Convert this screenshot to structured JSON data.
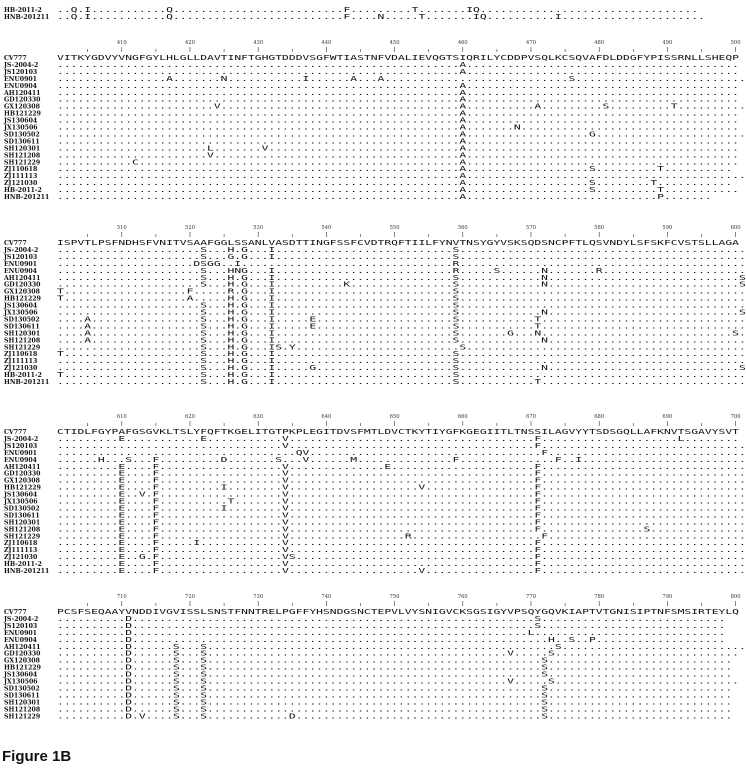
{
  "caption": "Figure 1B",
  "top_rows": [
    {
      "name": "HB-2011-2",
      "seq": "..Q.I...........Q.........................F.........T.......IQ................................"
    },
    {
      "name": "HNB-201211",
      "seq": "..Q.I...........Q.........................F....N.....T.......IQ..........I....................."
    }
  ],
  "blocks": [
    {
      "start": 400,
      "ticks": [
        410,
        420,
        430,
        440,
        450,
        460,
        470,
        480,
        490,
        500
      ],
      "rows": [
        {
          "name": "CV777",
          "seq": "VITKYGDVYVNGFGYLHLGLLDAVTINFTGHGTDDDVSGFWTIASTNFVDALIEVQGTSIQRILYCDDPVSQLKCSQVAFDLDDGFYPISSRNLLSHEQP"
        },
        {
          "name": "JS-2004-2",
          "seq": "...........................................................A........................................"
        },
        {
          "name": "JS120103",
          "seq": "...........................................................A........................................"
        },
        {
          "name": "ENU0901",
          "seq": "................A.......N...........I......A...A...........................S........................."
        },
        {
          "name": "ENU0904",
          "seq": "...........................................................A........................................"
        },
        {
          "name": "AH120411",
          "seq": "...........................................................A........................................"
        },
        {
          "name": "GD120330",
          "seq": "...........................................................A........................................"
        },
        {
          "name": "GX120308",
          "seq": ".......................V...................................A..........A.........S.........T..........."
        },
        {
          "name": "HB121229",
          "seq": "...........................................................A........................................"
        },
        {
          "name": "JS130604",
          "seq": "...........................................................A........................................"
        },
        {
          "name": "JX130506",
          "seq": "...........................................................A.......N................................"
        },
        {
          "name": "SD130502",
          "seq": "...........................................................A..................G.........................."
        },
        {
          "name": "SD130611",
          "seq": "...........................................................A........................................"
        },
        {
          "name": "SH120301",
          "seq": "......................L.......V............................A........................................"
        },
        {
          "name": "SH121208",
          "seq": "......................V....................................A........................................"
        },
        {
          "name": "SH121229",
          "seq": "...........C...............................................A........................................"
        },
        {
          "name": "ZJ110618",
          "seq": "...........................................................A..................S.........T.........."
        },
        {
          "name": "ZJ111113",
          "seq": "...........................................................A..........................................."
        },
        {
          "name": "ZJ121030",
          "seq": "...........................................................A..................S........T..........."
        },
        {
          "name": "HB-2011-2",
          "seq": "...........................................................A..................S.........T..........."
        },
        {
          "name": "HNB-201211",
          "seq": "...........................................................A............................P......."
        }
      ]
    },
    {
      "start": 500,
      "ticks": [
        510,
        520,
        530,
        540,
        550,
        560,
        570,
        580,
        590,
        600
      ],
      "rows": [
        {
          "name": "CV777",
          "seq": "ISPVTLPSFNDHSFVNITVSAAFGGLSSANLVASDTTINGFSSFCVDTRQFTIILFYNVTNSYGYVSKSQDSNCPFTLQSVNDYLSFSKFCVSTSLLAGA"
        },
        {
          "name": "JS-2004-2",
          "seq": ".....................S...H.G...I..........................S..........................................."
        },
        {
          "name": "JS120103",
          "seq": ".....................S...G.G...I..........................S..........................................."
        },
        {
          "name": "ENU0901",
          "seq": "....................DSGG..I...............................R..........................................."
        },
        {
          "name": "ENU0904",
          "seq": ".....................S...HNG...I..........................R.....S......N.......R......................."
        },
        {
          "name": "AH120411",
          "seq": ".....................S...H.G...I..........................S............N............................S."
        },
        {
          "name": "GD120330",
          "seq": ".....................S...H.G...I..........K...............S............N............................S."
        },
        {
          "name": "GX120308",
          "seq": "T..................F.....R.G...I..........................S..........................................."
        },
        {
          "name": "HB121229",
          "seq": "T..................A.....H.G...I..........................S............................................S."
        },
        {
          "name": "JS130604",
          "seq": ".....................S...H.G...I..........................S..........................................."
        },
        {
          "name": "JX130506",
          "seq": ".....................S...H.G...I..........................S............N............................S."
        },
        {
          "name": "SD130502",
          "seq": "....A................S...H.G...I.....E....................S...........T..............................S."
        },
        {
          "name": "SD130611",
          "seq": "....A................S...H.G...I.....E....................S...........T..............................S."
        },
        {
          "name": "SH120301",
          "seq": "....A................S...H.G...I..........................S.......G...N............................S."
        },
        {
          "name": "SH121208",
          "seq": "....A................S...H.G...I..........................S............N.............................."
        },
        {
          "name": "SH121229",
          "seq": ".....................S...H.G...IS.Y........................S.........................................."
        },
        {
          "name": "ZJ110618",
          "seq": "T....................S...H.G...I..........................S............................................S."
        },
        {
          "name": "ZJ111113",
          "seq": ".....................S...H.G...I..........................S............................................S."
        },
        {
          "name": "ZJ121030",
          "seq": ".....................S...H.G...I.....G....................S............N............................S."
        },
        {
          "name": "HB-2011-2",
          "seq": "T....................S...H.G...I..........................S..........................................S."
        },
        {
          "name": "HNB-201211",
          "seq": ".....................S...H.G...I..........................S...........T................................"
        }
      ]
    },
    {
      "start": 600,
      "ticks": [
        610,
        620,
        630,
        640,
        650,
        660,
        670,
        680,
        690,
        700
      ],
      "rows": [
        {
          "name": "CV777",
          "seq": "CTIDLFGYPAFGSGVKLTSLYFQFTKGELITGTPKPLEGITDVSFMTLDVCTKYTIYGFKGEGIITLTNSSILAGVYYTSDSGQLLAFKNVTSGAVYSVT"
        },
        {
          "name": "JS-2004-2",
          "seq": ".........E...........E...........V....................................F....................L........"
        },
        {
          "name": "JS120103",
          "seq": ".................................V....................................F..............................."
        },
        {
          "name": "ENU0901",
          "seq": "...................................QV..................................F..............................."
        },
        {
          "name": "ENU0904",
          "seq": "......H...S...F.........D.......S...V......M..............F..............F..I............................."
        },
        {
          "name": "AH120411",
          "seq": ".........E....F..................V..............E.....................F..............................."
        },
        {
          "name": "GD120330",
          "seq": ".........E....F..................V....................................F..............................."
        },
        {
          "name": "GX120308",
          "seq": ".........E....F..................V....................................F..............................."
        },
        {
          "name": "HB121229",
          "seq": ".........E....F.........I........V...................V................F..............................."
        },
        {
          "name": "JS130604",
          "seq": ".........E..V.F..................V....................................F..............................."
        },
        {
          "name": "JX130506",
          "seq": ".........E....F..........T.......V....................................F..............................."
        },
        {
          "name": "SD130502",
          "seq": ".........E....F.........I........V....................................F..............................."
        },
        {
          "name": "SD130611",
          "seq": ".........E....F..................V....................................F..............................."
        },
        {
          "name": "SH120301",
          "seq": ".........E....F..................V....................................F..............................."
        },
        {
          "name": "SH121208",
          "seq": ".........E....F..................V....................................F...............S..............."
        },
        {
          "name": "SH121229",
          "seq": ".........E....F..................V.................R...................F..............................."
        },
        {
          "name": "ZJ110618",
          "seq": ".........E....F.....I............V....................................F..............................."
        },
        {
          "name": "ZJ111113",
          "seq": ".........E....F..................V....................................F..............................."
        },
        {
          "name": "ZJ121030",
          "seq": ".........E..G.F..................VS...................................F..............................."
        },
        {
          "name": "HB-2011-2",
          "seq": ".........E....F..................V....................................F..............................."
        },
        {
          "name": "HNB-201211",
          "seq": ".........E....F..................V...................V................F..............................."
        }
      ]
    },
    {
      "start": 700,
      "ticks": [
        710,
        720,
        730,
        740,
        750,
        760,
        770,
        780,
        790,
        800
      ],
      "rows": [
        {
          "name": "CV777",
          "seq": "PCSFSEQAAYVNDDIVGVISSLSNSTFNNTRELPGFFYHSNDGSNCTEPVLVYSNIGVCKSGSIGYVPSQYGQVKIAPTVTGNISIPTNFSMSIRTEYLQ"
        },
        {
          "name": "JS-2004-2",
          "seq": "..........D...........................................................S..........................."
        },
        {
          "name": "JS120103",
          "seq": "..........D...........................................................S..........................."
        },
        {
          "name": "ENU0901",
          "seq": "..........D..........................................................L............................"
        },
        {
          "name": "ENU0904",
          "seq": "..........D.............................................................H..S..P..................."
        },
        {
          "name": "AH120411",
          "seq": "..........D......S...S...................................................S............................"
        },
        {
          "name": "GD120330",
          "seq": "..........D......S...S............................................V.....S..........................."
        },
        {
          "name": "GX120308",
          "seq": "..........D......S...S.................................................S..........................."
        },
        {
          "name": "HB121229",
          "seq": "..........D......S...S.................................................S..........................."
        },
        {
          "name": "JS130604",
          "seq": "..........D......S...S.................................................S..........................."
        },
        {
          "name": "JX130506",
          "seq": "..........D......S...S............................................V.....S..........................."
        },
        {
          "name": "SD130502",
          "seq": "..........D......S...S.................................................S..........................."
        },
        {
          "name": "SD130611",
          "seq": "..........D......S...S.................................................S..........................."
        },
        {
          "name": "SH120301",
          "seq": "..........D......S...S.................................................S..........................."
        },
        {
          "name": "SH121208",
          "seq": "..........D......S...S.................................................S..........................."
        },
        {
          "name": "SH121229",
          "seq": "..........D.V....S...S............D....................................S..........................."
        }
      ]
    }
  ]
}
